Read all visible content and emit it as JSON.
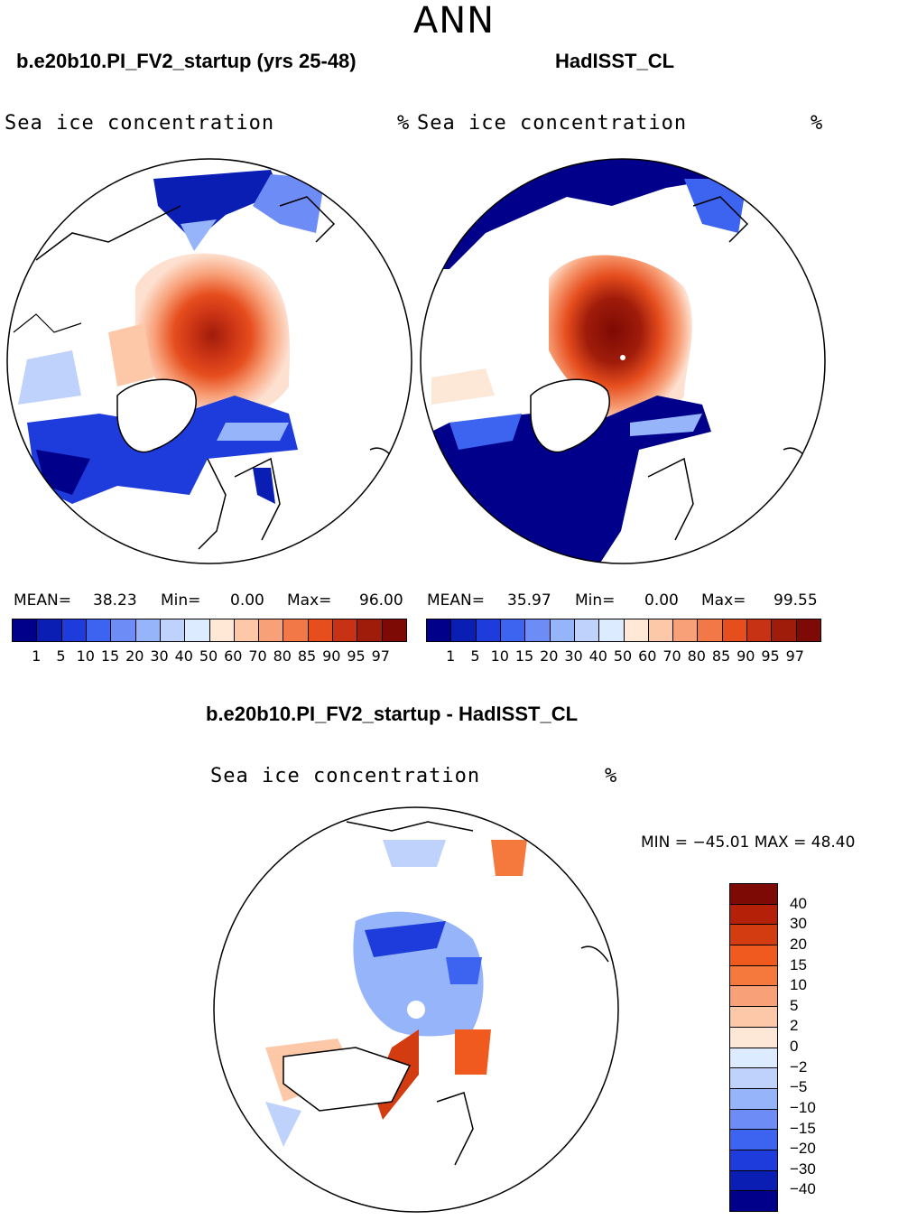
{
  "season": "ANN",
  "panel1": {
    "title": "b.e20b10.PI_FV2_startup (yrs 25-48)",
    "var_label": "Sea ice concentration",
    "unit": "%",
    "mean_label": "MEAN=",
    "mean": "38.23",
    "min_label": "Min=",
    "min": "0.00",
    "max_label": "Max=",
    "max": "96.00"
  },
  "panel2": {
    "title": "HadISST_CL",
    "var_label": "Sea ice concentration",
    "unit": "%",
    "mean_label": "MEAN=",
    "mean": "35.97",
    "min_label": "Min=",
    "min": "0.00",
    "max_label": "Max=",
    "max": "99.55"
  },
  "panel3": {
    "title": "b.e20b10.PI_FV2_startup - HadISST_CL",
    "var_label": "Sea ice concentration",
    "unit": "%",
    "minmax": "MIN = −45.01 MAX =   48.40"
  },
  "colorbar_abs": {
    "labels": [
      "1",
      "5",
      "10",
      "15",
      "20",
      "30",
      "40",
      "50",
      "60",
      "70",
      "80",
      "85",
      "90",
      "95",
      "97"
    ],
    "colors": [
      "#00008b",
      "#0a1eb4",
      "#1e3cdc",
      "#3c64f0",
      "#6e8cf5",
      "#96b4fa",
      "#bed2fc",
      "#dcebff",
      "#ffe8d6",
      "#fdc8a8",
      "#f8a078",
      "#f27848",
      "#e64e1e",
      "#c83214",
      "#a01c0a",
      "#7d0a04"
    ]
  },
  "colorbar_diff": {
    "labels": [
      "40",
      "30",
      "20",
      "15",
      "10",
      "5",
      "2",
      "0",
      "−2",
      "−5",
      "−10",
      "−15",
      "−20",
      "−30",
      "−40"
    ],
    "colors": [
      "#7d0a04",
      "#b42008",
      "#d23c10",
      "#f05a1e",
      "#f5783c",
      "#f8a078",
      "#fcc8a8",
      "#fde8d8",
      "#dcebff",
      "#bed2fc",
      "#96b4fa",
      "#6e8cf5",
      "#3c64f0",
      "#1e3cdc",
      "#0a1eb4",
      "#00008b"
    ]
  }
}
